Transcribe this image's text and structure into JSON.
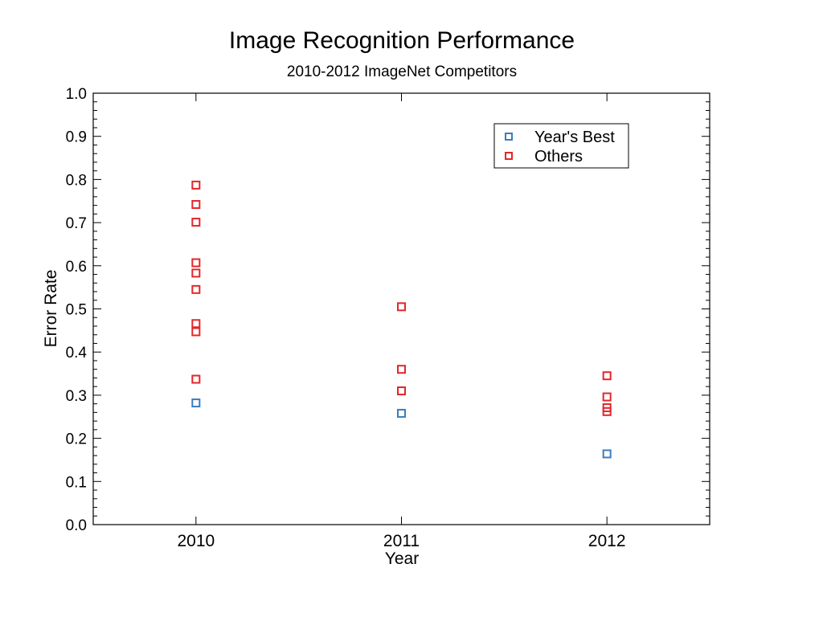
{
  "chart_data": {
    "type": "scatter",
    "title": "Image Recognition Performance",
    "subtitle": "2010-2012 ImageNet Competitors",
    "xlabel": "Year",
    "ylabel": "Error Rate",
    "x_ticks": [
      "2010",
      "2011",
      "2012"
    ],
    "xlim": [
      2009.5,
      2012.5
    ],
    "ylim": [
      0.0,
      1.0
    ],
    "y_ticks": [
      "0.0",
      "0.1",
      "0.2",
      "0.3",
      "0.4",
      "0.5",
      "0.6",
      "0.7",
      "0.8",
      "0.9",
      "1.0"
    ],
    "grid": false,
    "legend_position": "top-right",
    "series": [
      {
        "name": "Year's Best",
        "color": "#3a7dbf",
        "marker": "square-open",
        "points": [
          {
            "x": 2010,
            "y": 0.282
          },
          {
            "x": 2011,
            "y": 0.258
          },
          {
            "x": 2012,
            "y": 0.164
          }
        ]
      },
      {
        "name": "Others",
        "color": "#e3262a",
        "marker": "square-open",
        "points": [
          {
            "x": 2010,
            "y": 0.787
          },
          {
            "x": 2010,
            "y": 0.742
          },
          {
            "x": 2010,
            "y": 0.701
          },
          {
            "x": 2010,
            "y": 0.607
          },
          {
            "x": 2010,
            "y": 0.583
          },
          {
            "x": 2010,
            "y": 0.545
          },
          {
            "x": 2010,
            "y": 0.466
          },
          {
            "x": 2010,
            "y": 0.447
          },
          {
            "x": 2010,
            "y": 0.337
          },
          {
            "x": 2011,
            "y": 0.505
          },
          {
            "x": 2011,
            "y": 0.36
          },
          {
            "x": 2011,
            "y": 0.31
          },
          {
            "x": 2012,
            "y": 0.345
          },
          {
            "x": 2012,
            "y": 0.296
          },
          {
            "x": 2012,
            "y": 0.271
          },
          {
            "x": 2012,
            "y": 0.262
          }
        ]
      }
    ]
  }
}
